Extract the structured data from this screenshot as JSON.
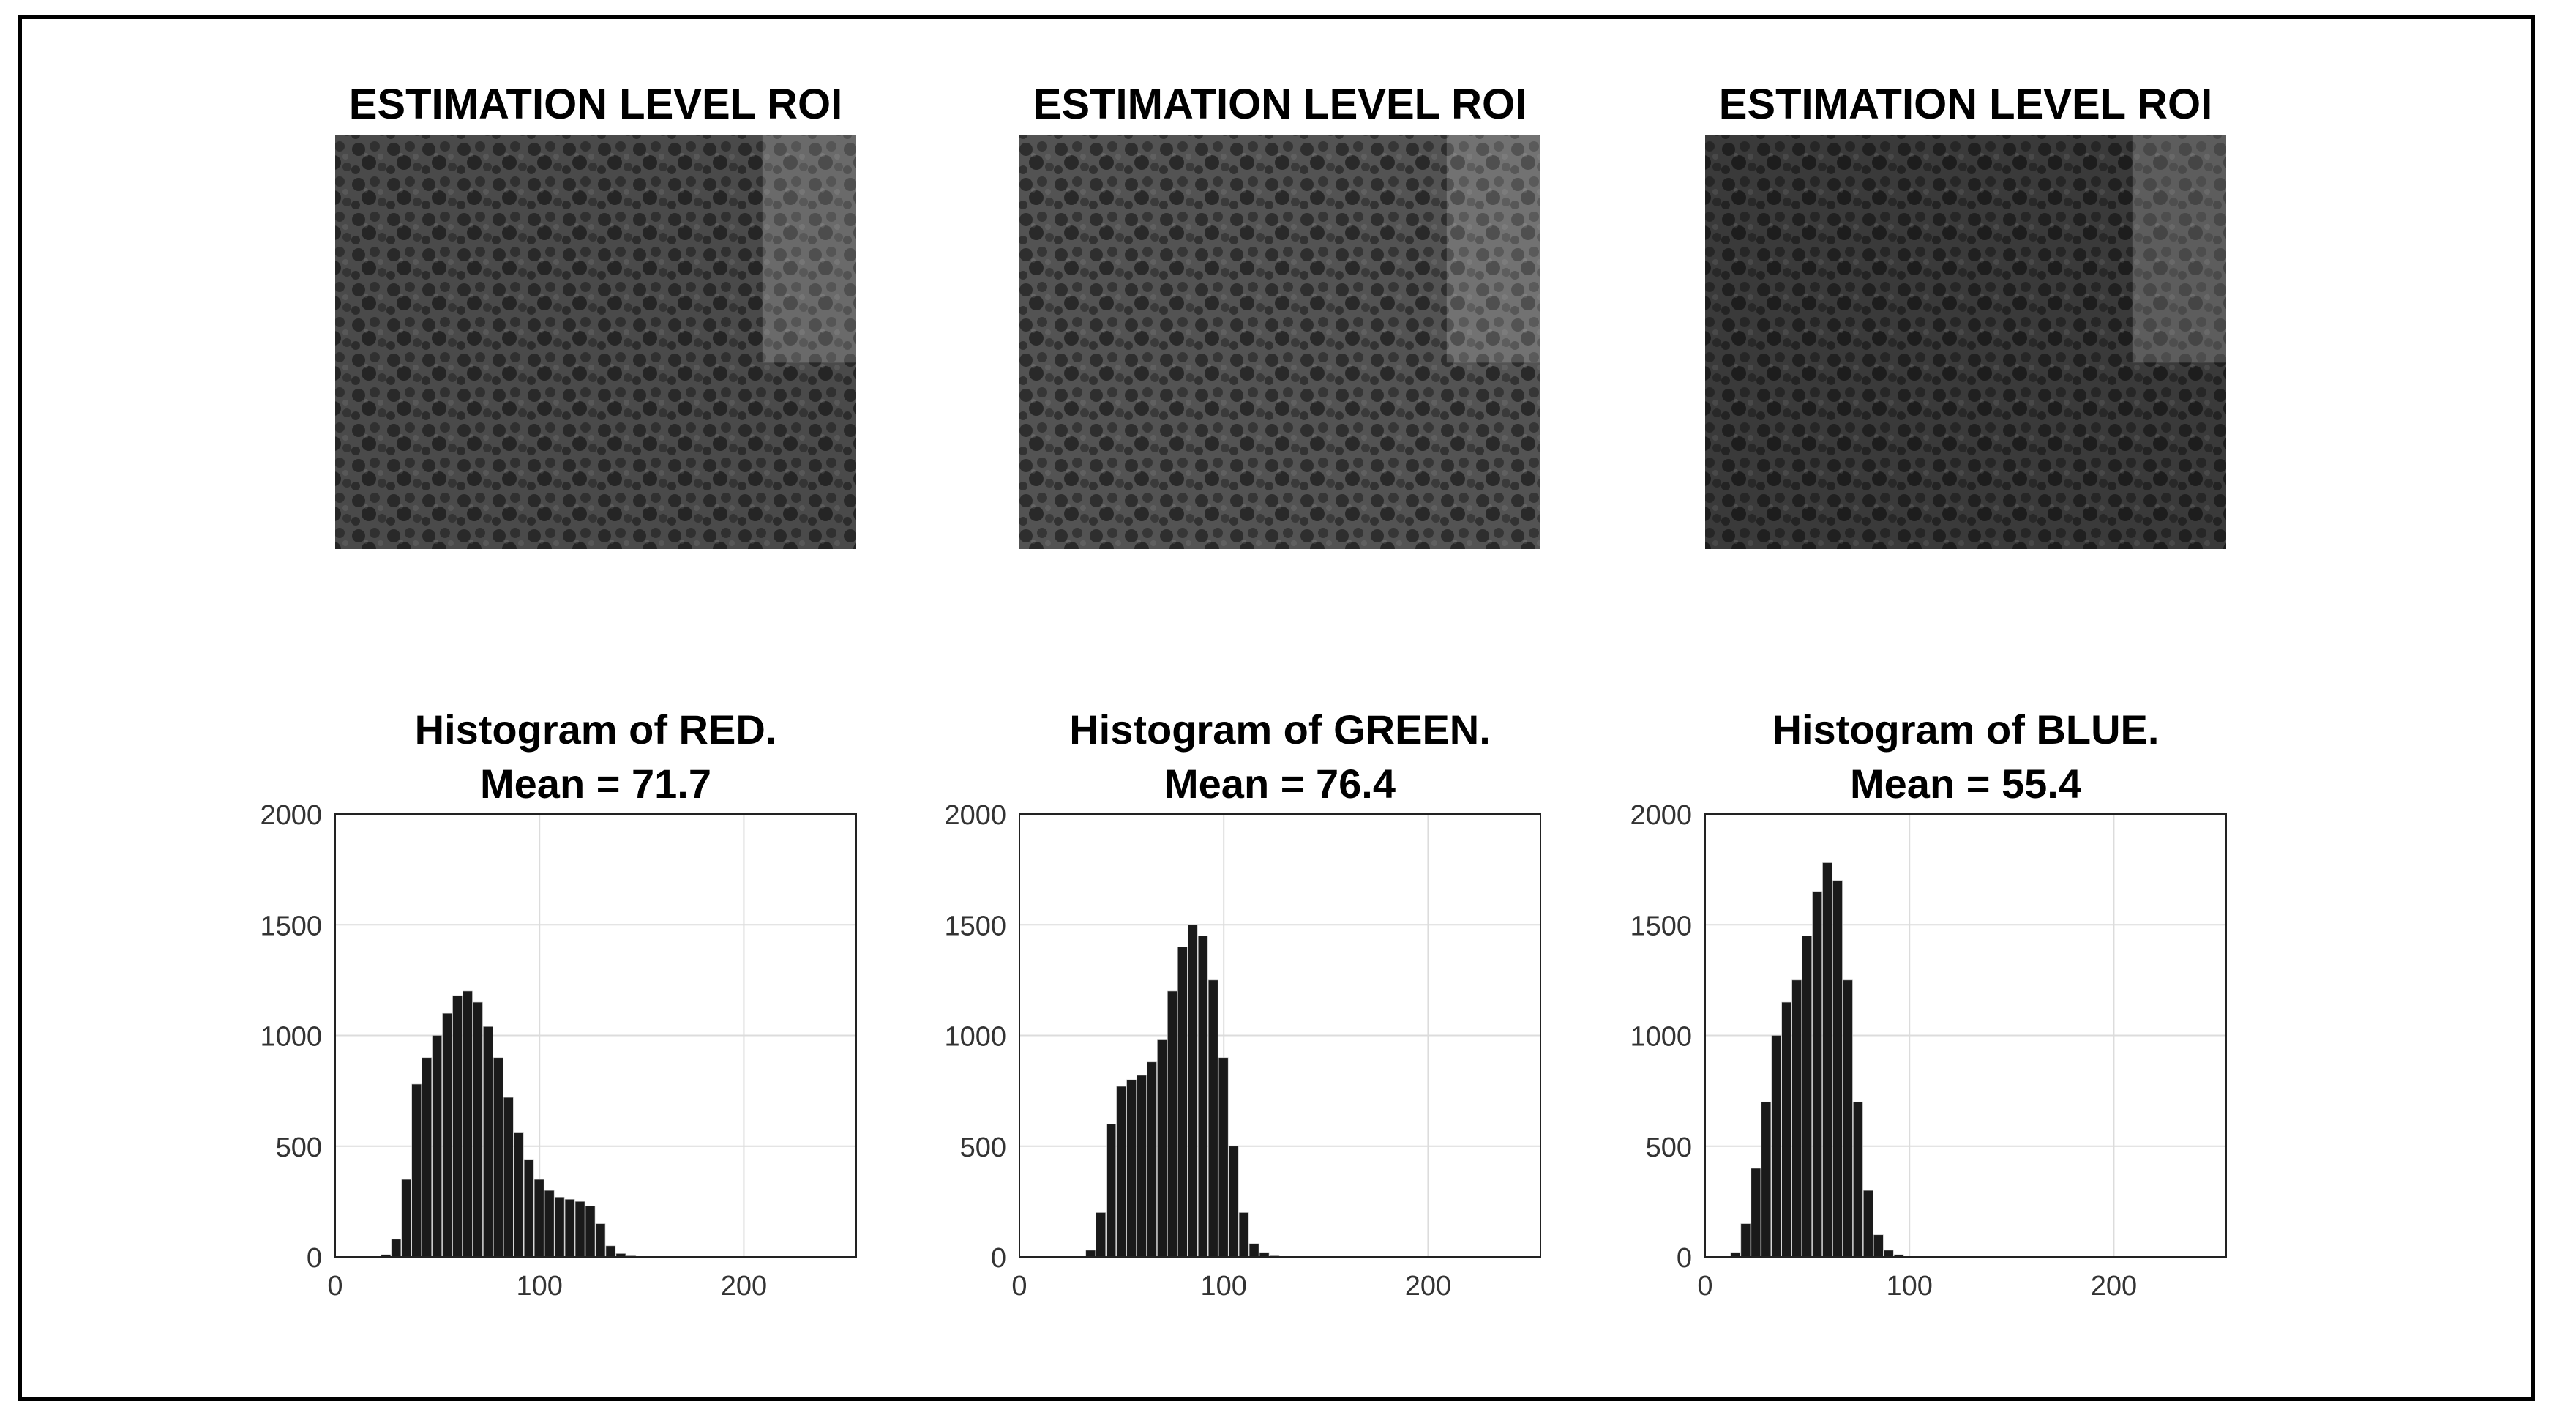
{
  "chart_data": [
    {
      "type": "image",
      "title": "ESTIMATION LEVEL ROI",
      "channel": "red",
      "shade": "#4a4a4a"
    },
    {
      "type": "image",
      "title": "ESTIMATION LEVEL ROI",
      "channel": "green",
      "shade": "#535353"
    },
    {
      "type": "image",
      "title": "ESTIMATION LEVEL ROI",
      "channel": "blue",
      "shade": "#3a3a3a"
    },
    {
      "type": "bar",
      "title": "Histogram of RED.",
      "subtitle": "Mean = 71.7",
      "xlim": [
        0,
        255
      ],
      "ylim": [
        0,
        2000
      ],
      "xticks": [
        "0",
        "100",
        "200"
      ],
      "yticks": [
        "0",
        "500",
        "1000",
        "1500",
        "2000"
      ],
      "grid": true,
      "bar_color": "#1a1a1a",
      "x": [
        20,
        25,
        30,
        35,
        40,
        45,
        50,
        55,
        60,
        65,
        70,
        75,
        80,
        85,
        90,
        95,
        100,
        105,
        110,
        115,
        120,
        125,
        130,
        135,
        140,
        145,
        150,
        155
      ],
      "values": [
        0,
        10,
        80,
        350,
        780,
        900,
        1000,
        1100,
        1180,
        1200,
        1150,
        1040,
        900,
        720,
        560,
        440,
        350,
        300,
        270,
        260,
        250,
        230,
        150,
        50,
        15,
        5,
        0,
        0
      ]
    },
    {
      "type": "bar",
      "title": "Histogram of GREEN.",
      "subtitle": "Mean = 76.4",
      "xlim": [
        0,
        255
      ],
      "ylim": [
        0,
        2000
      ],
      "xticks": [
        "0",
        "100",
        "200"
      ],
      "yticks": [
        "0",
        "500",
        "1000",
        "1500",
        "2000"
      ],
      "grid": true,
      "bar_color": "#1a1a1a",
      "x": [
        30,
        35,
        40,
        45,
        50,
        55,
        60,
        65,
        70,
        75,
        80,
        85,
        90,
        95,
        100,
        105,
        110,
        115,
        120,
        125,
        130,
        135
      ],
      "values": [
        0,
        30,
        200,
        600,
        770,
        800,
        820,
        880,
        980,
        1200,
        1400,
        1500,
        1450,
        1250,
        900,
        500,
        200,
        60,
        20,
        5,
        0,
        0
      ]
    },
    {
      "type": "bar",
      "title": "Histogram of BLUE.",
      "subtitle": "Mean = 55.4",
      "xlim": [
        0,
        255
      ],
      "ylim": [
        0,
        2000
      ],
      "xticks": [
        "0",
        "100",
        "200"
      ],
      "yticks": [
        "0",
        "500",
        "1000",
        "1500",
        "2000"
      ],
      "grid": true,
      "bar_color": "#1a1a1a",
      "x": [
        10,
        15,
        20,
        25,
        30,
        35,
        40,
        45,
        50,
        55,
        60,
        65,
        70,
        75,
        80,
        85,
        90,
        95,
        100,
        105,
        110
      ],
      "values": [
        0,
        20,
        150,
        400,
        700,
        1000,
        1150,
        1250,
        1450,
        1650,
        1780,
        1700,
        1250,
        700,
        300,
        100,
        30,
        10,
        0,
        0,
        0
      ]
    }
  ]
}
